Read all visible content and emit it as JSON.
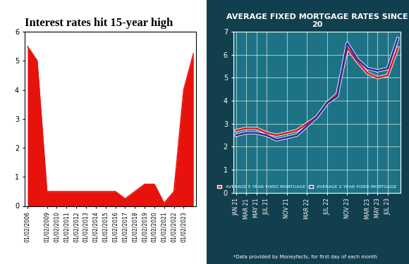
{
  "chart_data": [
    {
      "type": "area",
      "title": "Interest rates hit 15-year high",
      "categories": [
        "01/02/2006",
        null,
        "01/02/2009",
        "01/02/2010",
        "01/02/2011",
        "01/02/2012",
        "01/02/2013",
        "01/02/2014",
        "01/02/2015",
        "01/02/2016",
        "01/02/2017",
        "01/02/2018",
        "01/02/2019",
        "01/02/2020",
        "01/02/2021",
        "01/02/2022",
        "01/02/2023",
        null
      ],
      "values": [
        5.5,
        5.0,
        0.5,
        0.5,
        0.5,
        0.5,
        0.5,
        0.5,
        0.5,
        0.5,
        0.25,
        0.5,
        0.75,
        0.75,
        0.1,
        0.5,
        4.0,
        5.25
      ],
      "color": "#e8120c",
      "ylim": [
        0,
        6
      ],
      "yticks": [
        0,
        1,
        2,
        3,
        4,
        5,
        6
      ]
    },
    {
      "type": "line",
      "title": "AVERAGE FIXED MORTGAGE RATES SINCE 20",
      "categories": [
        "JAN 21",
        "MAR 21",
        "MAY 21",
        "JUL 21",
        null,
        "NOV 21",
        null,
        "MAR 22",
        null,
        "JUL 22",
        null,
        "NOV 23",
        null,
        "MAR 23",
        "MAY 23",
        "JUL 23",
        null
      ],
      "series": [
        {
          "name": "AVERAGE 5 YEAR FIXED MORTGAGE",
          "color": "#d0242c",
          "values": [
            2.7,
            2.8,
            2.8,
            2.6,
            2.5,
            2.6,
            2.7,
            3.0,
            3.3,
            3.9,
            4.3,
            6.3,
            5.7,
            5.2,
            5.0,
            5.1,
            6.3
          ]
        },
        {
          "name": "AVERAGE 2 YEAR FIXED MORTGAGE",
          "color": "#2b2f9e",
          "values": [
            2.5,
            2.6,
            2.6,
            2.5,
            2.3,
            2.4,
            2.5,
            2.9,
            3.3,
            3.9,
            4.2,
            6.5,
            5.8,
            5.4,
            5.3,
            5.4,
            6.7
          ]
        }
      ],
      "ylim": [
        0,
        7
      ],
      "yticks": [
        0,
        1,
        2,
        3,
        4,
        5,
        6,
        7
      ],
      "grid": true,
      "legend": "lower right",
      "note": "*Data provided by Moneyfacts, for first day of each month"
    }
  ]
}
